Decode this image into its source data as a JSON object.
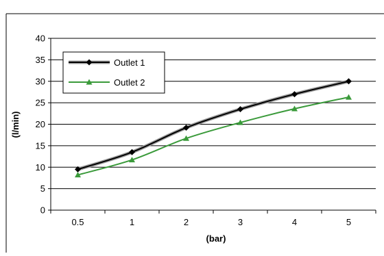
{
  "chart_data": {
    "type": "line",
    "categories": [
      "0.5",
      "1",
      "2",
      "3",
      "4",
      "5"
    ],
    "series": [
      {
        "name": "Outlet 1",
        "values": [
          9.5,
          13.5,
          19.2,
          23.5,
          27.0,
          30.0
        ],
        "color": "#000000",
        "marker": "diamond"
      },
      {
        "name": "Outlet 2",
        "values": [
          8.2,
          11.7,
          16.7,
          20.4,
          23.6,
          26.3
        ],
        "color": "#3a9a3a",
        "marker": "triangle"
      }
    ],
    "xlabel": "(bar)",
    "ylabel": "(l/min)",
    "ylim": [
      0,
      40
    ],
    "yticks": [
      0,
      5,
      10,
      15,
      20,
      25,
      30,
      35,
      40
    ],
    "grid": true,
    "legend": "top-left"
  }
}
